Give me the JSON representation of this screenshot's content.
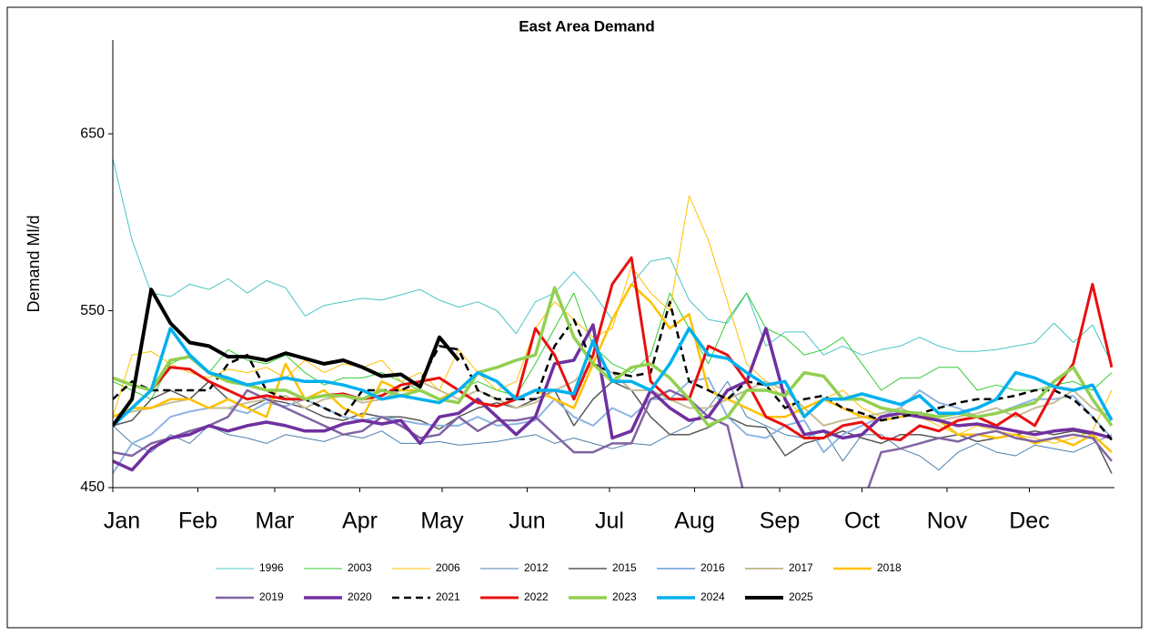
{
  "chart_data": {
    "type": "line",
    "title": "East Area Demand",
    "y_label": "Demand Ml/d",
    "x": [
      0,
      7,
      14,
      21,
      28,
      35,
      42,
      49,
      56,
      63,
      70,
      77,
      84,
      91,
      98,
      105,
      112,
      119,
      126,
      133,
      140,
      147,
      154,
      161,
      168,
      175,
      182,
      189,
      196,
      203,
      210,
      217,
      224,
      231,
      238,
      245,
      252,
      259,
      266,
      273,
      280,
      287,
      294,
      301,
      308,
      315,
      322,
      329,
      336,
      343,
      350,
      357,
      364
    ],
    "xlim": [
      0,
      365
    ],
    "xticks": [
      {
        "value": 0,
        "label": "Jan"
      },
      {
        "value": 31,
        "label": "Feb"
      },
      {
        "value": 59,
        "label": "Mar"
      },
      {
        "value": 90,
        "label": "Apr"
      },
      {
        "value": 120,
        "label": "May"
      },
      {
        "value": 151,
        "label": "Jun"
      },
      {
        "value": 181,
        "label": "Jul"
      },
      {
        "value": 212,
        "label": "Aug"
      },
      {
        "value": 243,
        "label": "Sep"
      },
      {
        "value": 273,
        "label": "Oct"
      },
      {
        "value": 304,
        "label": "Nov"
      },
      {
        "value": 334,
        "label": "Dec"
      }
    ],
    "ylim": [
      450,
      703
    ],
    "yticks": [
      450,
      550,
      650
    ],
    "legend": "bottom",
    "series": [
      {
        "name": "1996",
        "color": "#4bc4c4",
        "width": 1,
        "values": [
          636,
          590,
          560,
          558,
          565,
          562,
          568,
          560,
          567,
          563,
          547,
          553,
          555,
          557,
          556,
          559,
          562,
          556,
          552,
          555,
          550,
          537,
          555,
          560,
          572,
          560,
          545,
          565,
          578,
          580,
          556,
          545,
          543,
          560,
          530,
          538,
          538,
          525,
          530,
          525,
          528,
          530,
          535,
          530,
          527,
          527,
          528,
          530,
          532,
          543,
          532,
          542,
          520
        ]
      },
      {
        "name": "2003",
        "color": "#33cc33",
        "width": 1,
        "values": [
          510,
          505,
          500,
          520,
          525,
          515,
          528,
          522,
          520,
          525,
          515,
          508,
          512,
          512,
          515,
          510,
          505,
          500,
          505,
          510,
          505,
          502,
          520,
          540,
          560,
          530,
          520,
          515,
          525,
          560,
          540,
          520,
          545,
          560,
          540,
          535,
          525,
          528,
          535,
          520,
          505,
          512,
          512,
          518,
          518,
          505,
          508,
          505,
          505,
          508,
          510,
          505,
          515
        ]
      },
      {
        "name": "2006",
        "color": "#ffc000",
        "width": 1,
        "values": [
          490,
          525,
          527,
          520,
          515,
          512,
          517,
          515,
          518,
          512,
          522,
          515,
          520,
          518,
          522,
          510,
          515,
          505,
          528,
          515,
          505,
          510,
          540,
          555,
          545,
          535,
          540,
          575,
          560,
          550,
          615,
          590,
          555,
          520,
          510,
          500,
          490,
          500,
          505,
          495,
          490,
          495,
          490,
          485,
          480,
          485,
          482,
          480,
          478,
          475,
          478,
          482,
          505
        ]
      },
      {
        "name": "2012",
        "color": "#4f7fab",
        "width": 1,
        "values": [
          485,
          475,
          470,
          480,
          475,
          485,
          480,
          478,
          475,
          480,
          478,
          476,
          480,
          478,
          482,
          475,
          475,
          476,
          474,
          475,
          476,
          478,
          480,
          475,
          478,
          475,
          472,
          475,
          474,
          480,
          485,
          495,
          510,
          490,
          485,
          480,
          478,
          482,
          465,
          480,
          480,
          472,
          468,
          460,
          470,
          475,
          470,
          468,
          474,
          472,
          470,
          475,
          480
        ]
      },
      {
        "name": "2015",
        "color": "#595959",
        "width": 1.5,
        "values": [
          485,
          488,
          500,
          505,
          500,
          510,
          500,
          495,
          500,
          498,
          495,
          490,
          488,
          492,
          490,
          490,
          488,
          483,
          490,
          495,
          498,
          495,
          500,
          505,
          485,
          500,
          510,
          505,
          490,
          480,
          480,
          484,
          490,
          485,
          484,
          468,
          475,
          478,
          482,
          478,
          475,
          480,
          480,
          478,
          480,
          476,
          478,
          480,
          482,
          480,
          482,
          480,
          458
        ]
      },
      {
        "name": "2016",
        "color": "#8eb4e3",
        "width": 2,
        "values": [
          458,
          475,
          480,
          490,
          493,
          495,
          495,
          492,
          498,
          496,
          500,
          495,
          490,
          488,
          490,
          488,
          486,
          485,
          485,
          490,
          485,
          486,
          488,
          500,
          490,
          485,
          495,
          490,
          500,
          500,
          510,
          512,
          490,
          480,
          478,
          485,
          488,
          470,
          480,
          485,
          490,
          495,
          505,
          498,
          495,
          490,
          492,
          496,
          500,
          500,
          502,
          490,
          478
        ]
      },
      {
        "name": "2017",
        "color": "#c4bd97",
        "width": 2,
        "values": [
          490,
          493,
          495,
          498,
          500,
          495,
          495,
          498,
          500,
          502,
          495,
          500,
          502,
          498,
          500,
          505,
          510,
          505,
          500,
          505,
          500,
          495,
          498,
          505,
          510,
          520,
          515,
          505,
          505,
          500,
          495,
          495,
          500,
          505,
          510,
          505,
          495,
          485,
          488,
          490,
          492,
          495,
          490,
          488,
          490,
          492,
          495,
          490,
          495,
          498,
          505,
          495,
          490
        ]
      },
      {
        "name": "2018",
        "color": "#ffc000",
        "width": 2.5,
        "values": [
          490,
          495,
          495,
          500,
          500,
          495,
          500,
          495,
          490,
          520,
          500,
          505,
          495,
          490,
          510,
          505,
          505,
          500,
          505,
          515,
          510,
          500,
          505,
          500,
          495,
          520,
          545,
          565,
          555,
          540,
          548,
          505,
          500,
          495,
          490,
          490,
          495,
          500,
          495,
          490,
          488,
          490,
          492,
          488,
          480,
          480,
          478,
          480,
          475,
          478,
          474,
          480,
          470
        ]
      },
      {
        "name": "2019",
        "color": "#8064a2",
        "width": 2.5,
        "values": [
          470,
          468,
          475,
          478,
          482,
          485,
          490,
          505,
          500,
          495,
          490,
          485,
          480,
          482,
          490,
          485,
          478,
          480,
          490,
          482,
          488,
          488,
          490,
          480,
          470,
          470,
          475,
          475,
          500,
          505,
          500,
          490,
          485,
          440,
          null,
          null,
          null,
          null,
          null,
          440,
          470,
          472,
          475,
          478,
          476,
          480,
          482,
          478,
          476,
          478,
          480,
          478,
          465
        ]
      },
      {
        "name": "2020",
        "color": "#7030a0",
        "width": 3.5,
        "values": [
          465,
          460,
          472,
          478,
          480,
          485,
          482,
          485,
          487,
          485,
          482,
          482,
          486,
          488,
          486,
          488,
          475,
          490,
          492,
          500,
          490,
          480,
          490,
          520,
          522,
          542,
          478,
          482,
          505,
          495,
          488,
          490,
          505,
          510,
          540,
          500,
          480,
          482,
          478,
          480,
          490,
          492,
          490,
          488,
          485,
          486,
          484,
          482,
          480,
          482,
          483,
          481,
          478
        ]
      },
      {
        "name": "2021",
        "color": "#000000",
        "width": 2.5,
        "dash": true,
        "values": [
          500,
          510,
          505,
          505,
          505,
          505,
          520,
          525,
          505,
          500,
          500,
          495,
          490,
          505,
          505,
          505,
          510,
          530,
          528,
          505,
          500,
          500,
          500,
          530,
          545,
          520,
          515,
          513,
          515,
          555,
          510,
          505,
          500,
          510,
          508,
          495,
          500,
          502,
          495,
          492,
          488,
          490,
          492,
          495,
          498,
          500,
          500,
          502,
          505,
          505,
          500,
          490,
          477
        ]
      },
      {
        "name": "2022",
        "color": "#e81010",
        "width": 3,
        "values": [
          485,
          495,
          505,
          518,
          517,
          510,
          505,
          500,
          502,
          500,
          500,
          502,
          503,
          500,
          502,
          508,
          510,
          512,
          505,
          498,
          496,
          500,
          540,
          525,
          500,
          525,
          565,
          580,
          510,
          500,
          500,
          530,
          525,
          510,
          490,
          485,
          478,
          478,
          485,
          487,
          478,
          477,
          485,
          482,
          488,
          490,
          485,
          492,
          485,
          505,
          520,
          565,
          518
        ]
      },
      {
        "name": "2023",
        "color": "#92d050",
        "width": 3.5,
        "values": [
          512,
          508,
          505,
          522,
          524,
          515,
          510,
          508,
          505,
          505,
          500,
          502,
          502,
          500,
          505,
          502,
          505,
          500,
          498,
          515,
          518,
          522,
          525,
          563,
          535,
          520,
          510,
          518,
          520,
          512,
          500,
          485,
          490,
          505,
          505,
          502,
          515,
          513,
          500,
          500,
          495,
          493,
          492,
          490,
          492,
          490,
          492,
          495,
          498,
          510,
          518,
          500,
          485
        ]
      },
      {
        "name": "2024",
        "color": "#00b0f0",
        "width": 3.5,
        "values": [
          485,
          495,
          505,
          540,
          525,
          515,
          512,
          508,
          510,
          512,
          510,
          510,
          508,
          505,
          500,
          502,
          500,
          498,
          505,
          515,
          510,
          500,
          505,
          505,
          503,
          533,
          510,
          510,
          505,
          520,
          540,
          525,
          523,
          515,
          508,
          510,
          490,
          500,
          500,
          503,
          500,
          497,
          502,
          492,
          492,
          495,
          500,
          515,
          512,
          507,
          505,
          508,
          488
        ]
      },
      {
        "name": "2025",
        "color": "#000000",
        "width": 4,
        "values": [
          485,
          500,
          562,
          543,
          532,
          530,
          524,
          524,
          522,
          526,
          523,
          520,
          522,
          518,
          513,
          514,
          507,
          535,
          522,
          null,
          null,
          null,
          null,
          null,
          null,
          null,
          null,
          null,
          null,
          null,
          null,
          null,
          null,
          null,
          null,
          null,
          null,
          null,
          null,
          null,
          null,
          null,
          null,
          null,
          null,
          null,
          null,
          null,
          null,
          null,
          null,
          null,
          null
        ]
      }
    ]
  }
}
